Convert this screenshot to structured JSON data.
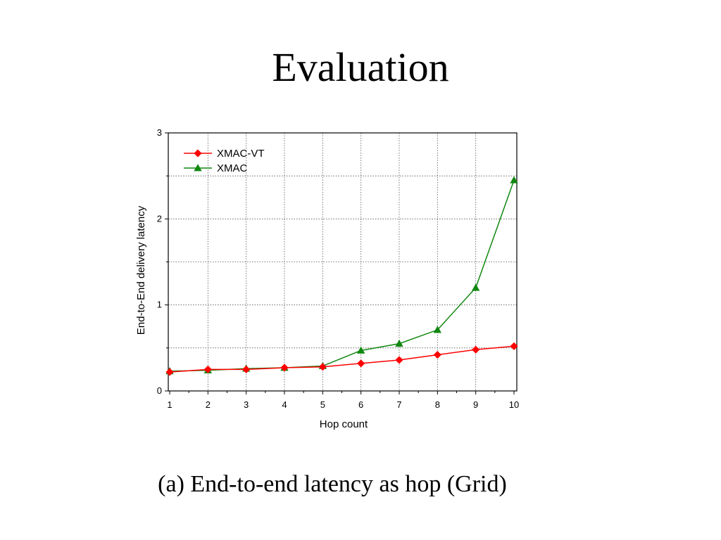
{
  "slide": {
    "title": "Evaluation",
    "caption": "(a) End-to-end latency as hop (Grid)"
  },
  "chart_data": {
    "type": "line",
    "title": "",
    "xlabel": "Hop count",
    "ylabel": "End-to-End delivery latency",
    "x": [
      1,
      2,
      3,
      4,
      5,
      6,
      7,
      8,
      9,
      10
    ],
    "xlim": [
      1,
      10
    ],
    "ylim": [
      0,
      3
    ],
    "xticks": [
      1,
      2,
      3,
      4,
      5,
      6,
      7,
      8,
      9,
      10
    ],
    "yticks": [
      0,
      1,
      2,
      3
    ],
    "grid": true,
    "legend_position": "top-left",
    "series": [
      {
        "name": "XMAC-VT",
        "color": "#ff0000",
        "marker": "diamond",
        "values": [
          0.22,
          0.25,
          0.25,
          0.27,
          0.28,
          0.32,
          0.36,
          0.42,
          0.48,
          0.52
        ]
      },
      {
        "name": "XMAC",
        "color": "#118811",
        "marker": "triangle",
        "values": [
          0.23,
          0.24,
          0.26,
          0.27,
          0.29,
          0.47,
          0.55,
          0.71,
          1.2,
          2.45
        ]
      }
    ]
  }
}
